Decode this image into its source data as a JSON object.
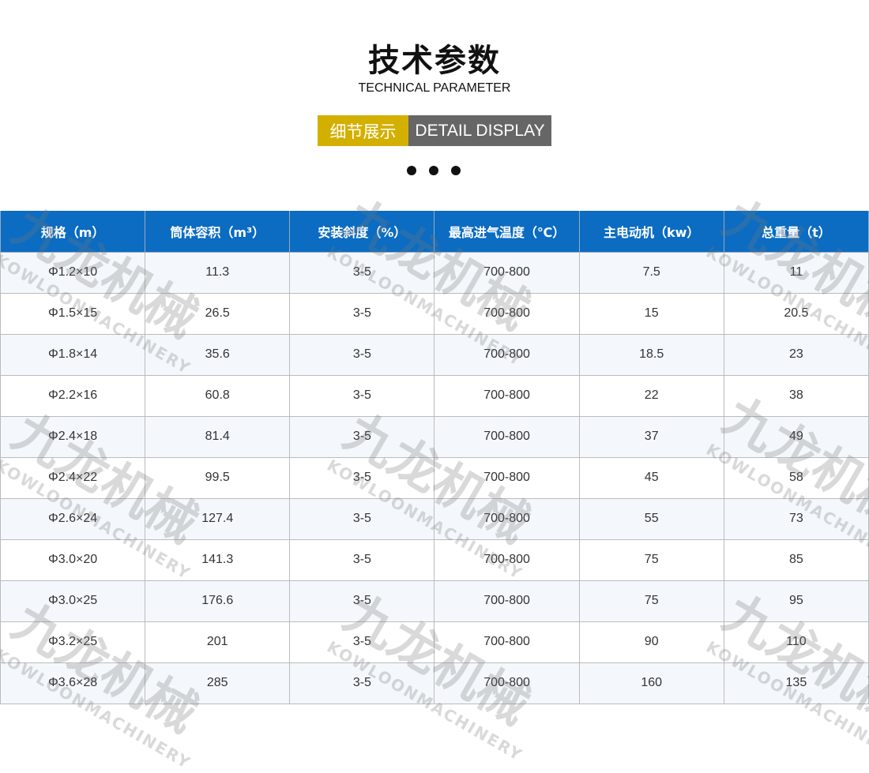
{
  "header": {
    "title": "技术参数",
    "subtitle": "TECHNICAL PARAMETER",
    "badge_cn": "细节展示",
    "badge_en": "DETAIL DISPLAY"
  },
  "watermark": {
    "cn": "九龙机械",
    "en": "KOWLOONMACHINERY"
  },
  "table": {
    "headers": [
      "规格（m）",
      "筒体容积（m³）",
      "安装斜度（%）",
      "最高进气温度（℃）",
      "主电动机（kw）",
      "总重量（t）"
    ],
    "rows": [
      [
        "Φ1.2×10",
        "11.3",
        "3-5",
        "700-800",
        "7.5",
        "11"
      ],
      [
        "Φ1.5×15",
        "26.5",
        "3-5",
        "700-800",
        "15",
        "20.5"
      ],
      [
        "Φ1.8×14",
        "35.6",
        "3-5",
        "700-800",
        "18.5",
        "23"
      ],
      [
        "Φ2.2×16",
        "60.8",
        "3-5",
        "700-800",
        "22",
        "38"
      ],
      [
        "Φ2.4×18",
        "81.4",
        "3-5",
        "700-800",
        "37",
        "49"
      ],
      [
        "Φ2.4×22",
        "99.5",
        "3-5",
        "700-800",
        "45",
        "58"
      ],
      [
        "Φ2.6×24",
        "127.4",
        "3-5",
        "700-800",
        "55",
        "73"
      ],
      [
        "Φ3.0×20",
        "141.3",
        "3-5",
        "700-800",
        "75",
        "85"
      ],
      [
        "Φ3.0×25",
        "176.6",
        "3-5",
        "700-800",
        "75",
        "95"
      ],
      [
        "Φ3.2×25",
        "201",
        "3-5",
        "700-800",
        "90",
        "110"
      ],
      [
        "Φ3.6×28",
        "285",
        "3-5",
        "700-800",
        "160",
        "135"
      ]
    ]
  }
}
